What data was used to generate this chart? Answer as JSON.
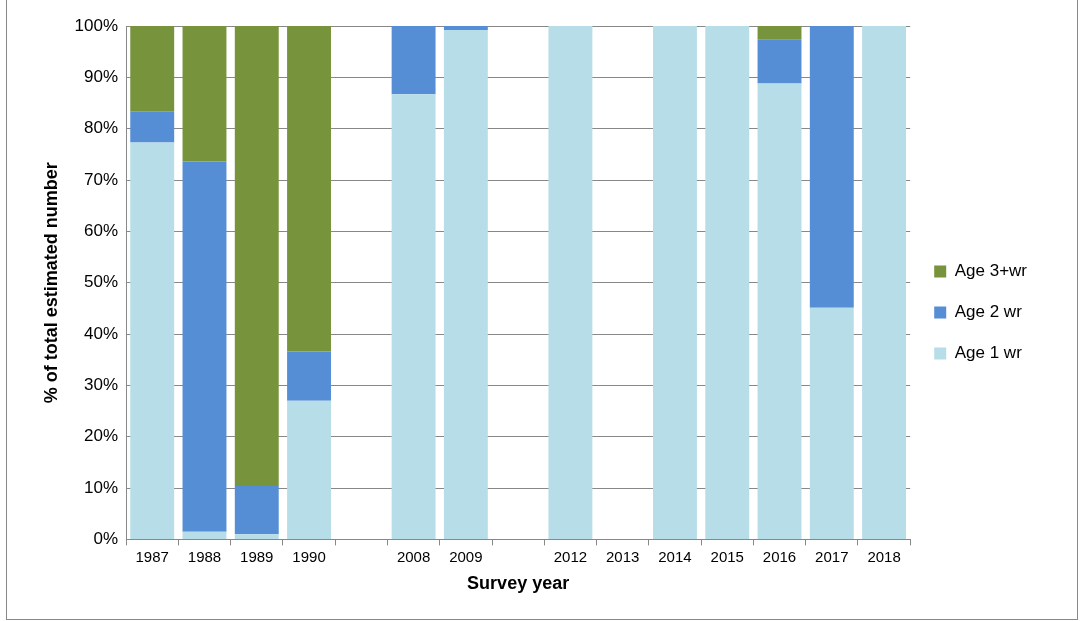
{
  "chart_data": {
    "type": "bar",
    "stacked": true,
    "xlabel": "Survey year",
    "ylabel": "% of total estimated number",
    "categories": [
      "1987",
      "1988",
      "1989",
      "1990",
      null,
      "2008",
      "2009",
      null,
      "2012",
      "2013",
      "2014",
      "2015",
      "2016",
      "2017",
      "2018"
    ],
    "series": [
      {
        "name": "Age 1 wr",
        "color": "#b7dde8",
        "values": [
          77.3,
          1.5,
          1,
          27,
          null,
          86.7,
          99.2,
          null,
          100,
          null,
          100,
          100,
          88.8,
          45.1,
          100
        ]
      },
      {
        "name": "Age 2 wr",
        "color": "#558ed5",
        "values": [
          6.1,
          72.1,
          9.4,
          9.6,
          null,
          13.3,
          0.8,
          null,
          0,
          null,
          0,
          0,
          8.5,
          54.9,
          0
        ]
      },
      {
        "name": "Age 3+wr",
        "color": "#77933c",
        "values": [
          16.6,
          26.4,
          89.6,
          63.4,
          null,
          0,
          0,
          null,
          0,
          null,
          0,
          0,
          2.7,
          0,
          0
        ]
      }
    ],
    "ylim": [
      0,
      100
    ],
    "yticks": [
      {
        "value": 0,
        "label": "0%"
      },
      {
        "value": 10,
        "label": "10%"
      },
      {
        "value": 20,
        "label": "20%"
      },
      {
        "value": 30,
        "label": "30%"
      },
      {
        "value": 40,
        "label": "40%"
      },
      {
        "value": 50,
        "label": "50%"
      },
      {
        "value": 60,
        "label": "60%"
      },
      {
        "value": 70,
        "label": "70%"
      },
      {
        "value": 80,
        "label": "80%"
      },
      {
        "value": 90,
        "label": "90%"
      },
      {
        "value": 100,
        "label": "100%"
      }
    ],
    "grid": "y",
    "legend": "right"
  }
}
